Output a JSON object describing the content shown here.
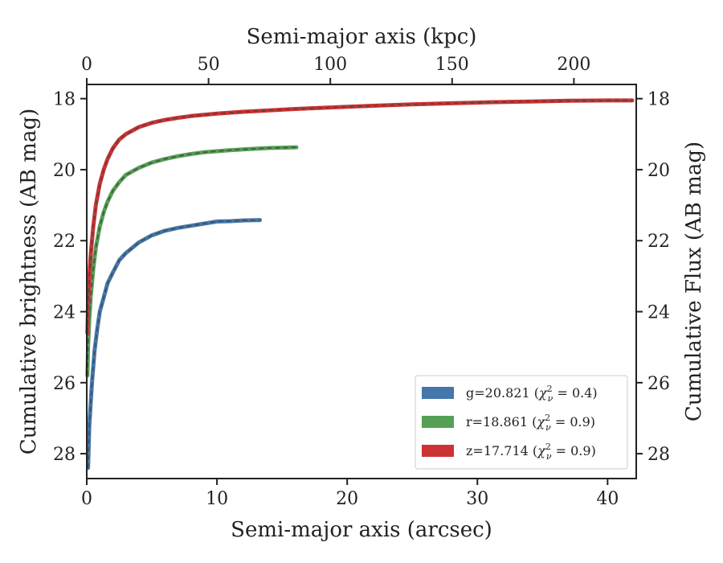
{
  "chart_data": {
    "type": "line",
    "xlabel": "Semi-major axis (arcsec)",
    "ylabel": "Cumulative brightness (AB mag)",
    "x2label": "Semi-major axis (kpc)",
    "y2label": "Cumulative Flux (AB mag)",
    "xlim": [
      0,
      42.2
    ],
    "ylim": [
      28.7,
      17.6
    ],
    "x2lim": [
      0,
      225.6
    ],
    "xticks": [
      0,
      10,
      20,
      30,
      40
    ],
    "yticks": [
      18,
      20,
      22,
      24,
      26,
      28
    ],
    "x2ticks": [
      0,
      50,
      100,
      150,
      200
    ],
    "xtick_labels": [
      "0",
      "10",
      "20",
      "30",
      "40"
    ],
    "ytick_labels": [
      "18",
      "20",
      "22",
      "24",
      "26",
      "28"
    ],
    "x2tick_labels": [
      "0",
      "50",
      "100",
      "150",
      "200"
    ],
    "legend_position": "lower-right",
    "grid": false,
    "series": [
      {
        "name": "g=20.821 (χ²ᵥ = 0.4)",
        "label_main": "g=20.821 (",
        "label_chi": "χ",
        "label_sup": "2",
        "label_sub": "ν",
        "label_tail": " = 0.4)",
        "color": "#4477aa",
        "x": [
          0.1,
          0.2,
          0.4,
          0.6,
          0.8,
          1.0,
          1.3,
          1.6,
          2.0,
          2.5,
          3.0,
          3.5,
          4.0,
          5.0,
          6.0,
          7.0,
          8.0,
          9.0,
          10.0,
          11.0,
          12.0,
          13.3
        ],
        "y": [
          28.4,
          27.2,
          26.0,
          25.1,
          24.5,
          24.0,
          23.6,
          23.2,
          22.9,
          22.55,
          22.35,
          22.2,
          22.05,
          21.85,
          21.72,
          21.64,
          21.58,
          21.52,
          21.46,
          21.45,
          21.43,
          21.42
        ]
      },
      {
        "name": "r=18.861 (χ²ᵥ = 0.9)",
        "label_main": "r=18.861 (",
        "label_chi": "χ",
        "label_sup": "2",
        "label_sub": "ν",
        "label_tail": " = 0.9)",
        "color": "#55a055",
        "x": [
          0.05,
          0.1,
          0.2,
          0.3,
          0.5,
          0.7,
          1.0,
          1.3,
          1.6,
          2.0,
          2.5,
          3.0,
          4.0,
          5.0,
          6.0,
          7.0,
          8.0,
          9.0,
          10.0,
          11.0,
          12.0,
          13.0,
          14.0,
          15.0,
          16.1
        ],
        "y": [
          25.8,
          25.0,
          24.2,
          23.6,
          22.8,
          22.2,
          21.6,
          21.2,
          20.9,
          20.6,
          20.35,
          20.15,
          19.95,
          19.8,
          19.7,
          19.62,
          19.56,
          19.51,
          19.48,
          19.45,
          19.43,
          19.41,
          19.39,
          19.38,
          19.37
        ]
      },
      {
        "name": "z=17.714 (χ²ᵥ = 0.9)",
        "label_main": "z=17.714 (",
        "label_chi": "χ",
        "label_sup": "2",
        "label_sub": "ν",
        "label_tail": " = 0.9)",
        "color": "#cc3333",
        "x": [
          0.05,
          0.1,
          0.2,
          0.3,
          0.5,
          0.7,
          1.0,
          1.3,
          1.6,
          2.0,
          2.5,
          3.0,
          4.0,
          5.0,
          6.0,
          7.0,
          8.0,
          10.0,
          12.0,
          14.0,
          16.0,
          18.0,
          20.0,
          22.0,
          25.0,
          28.0,
          31.0,
          34.0,
          37.0,
          40.0,
          41.9
        ],
        "y": [
          24.6,
          23.8,
          23.0,
          22.4,
          21.6,
          21.0,
          20.4,
          20.0,
          19.7,
          19.4,
          19.15,
          19.0,
          18.8,
          18.68,
          18.6,
          18.54,
          18.49,
          18.42,
          18.37,
          18.33,
          18.29,
          18.26,
          18.23,
          18.2,
          18.16,
          18.13,
          18.1,
          18.08,
          18.06,
          18.05,
          18.05
        ]
      }
    ]
  }
}
